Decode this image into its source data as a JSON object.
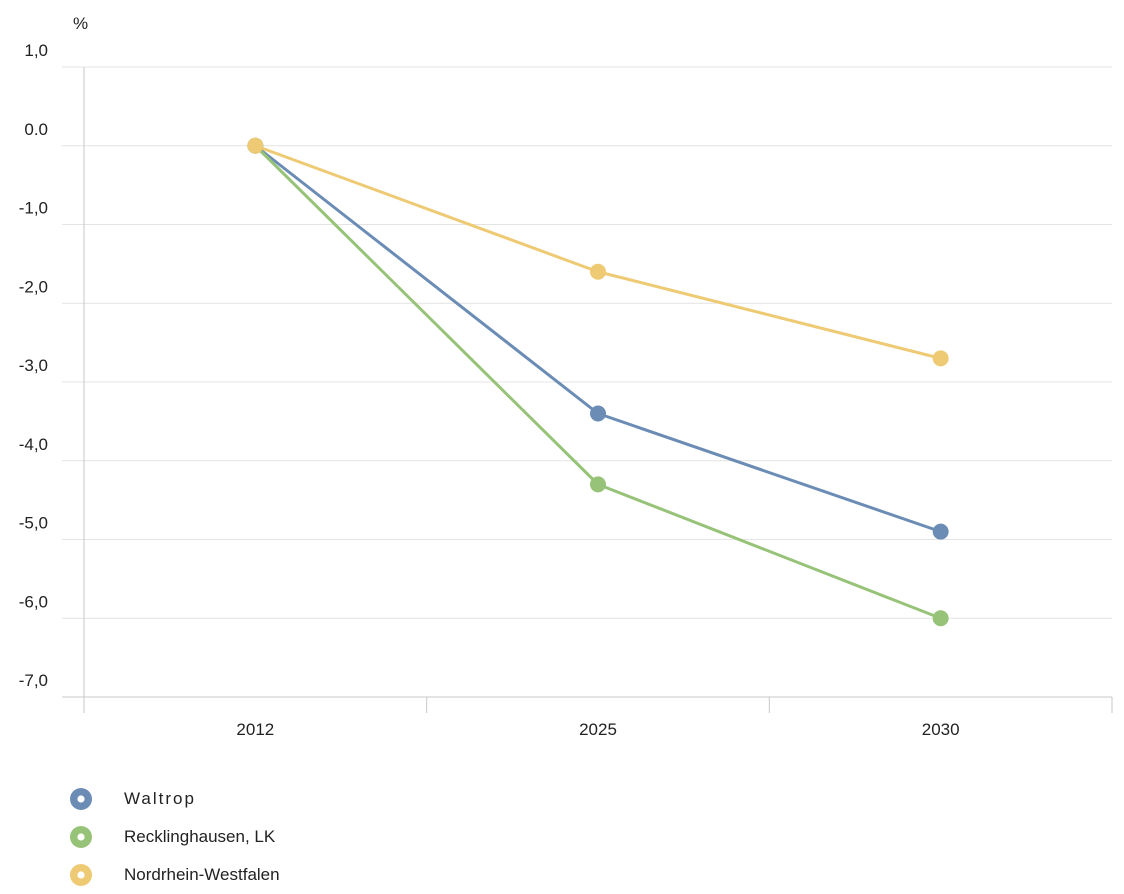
{
  "chart_data": {
    "type": "line",
    "ylabel": "%",
    "categories": [
      "2012",
      "2025",
      "2030"
    ],
    "ylim": [
      -7.0,
      1.0
    ],
    "yticks": [
      "1,0",
      "0.0",
      "-1,0",
      "-2,0",
      "-3,0",
      "-4,0",
      "-5,0",
      "-6,0",
      "-7,0"
    ],
    "grid": true,
    "legend_position": "bottom-left",
    "series": [
      {
        "name": "Waltrop",
        "color": "#6b8cb5",
        "values": [
          0.0,
          -3.4,
          -4.9
        ]
      },
      {
        "name": "Recklinghausen, LK",
        "color": "#97c379",
        "values": [
          0.0,
          -4.3,
          -6.0
        ]
      },
      {
        "name": "Nordrhein-Westfalen",
        "color": "#efca74",
        "values": [
          0.0,
          -1.6,
          -2.7
        ]
      }
    ]
  }
}
